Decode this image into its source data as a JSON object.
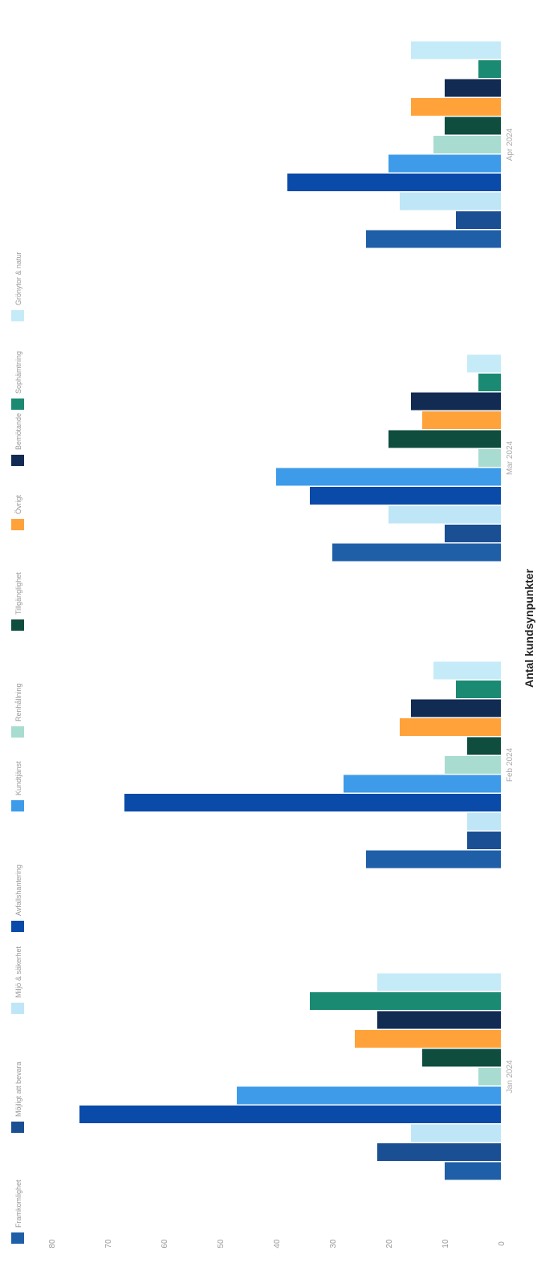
{
  "chart_data": {
    "type": "bar",
    "orientation": "horizontal",
    "rotated": "90deg counter-clockwise",
    "title": "Antal kundsynpunkter",
    "xlabel": "",
    "ylabel": "",
    "ylim": [
      0,
      80
    ],
    "yticks": [
      0,
      10,
      20,
      30,
      40,
      50,
      60,
      70,
      80
    ],
    "ytick_labels": [
      "0",
      "10",
      "20",
      "30",
      "40",
      "50",
      "60",
      "70",
      "80"
    ],
    "grid": false,
    "legend_position": "top",
    "categories": [
      "Jan 2024",
      "Feb 2024",
      "Mar 2024",
      "Apr 2024"
    ],
    "series": [
      {
        "name": "Framkomlighet",
        "color": "#1f5fa8",
        "values": [
          10,
          24,
          30,
          24
        ]
      },
      {
        "name": "Möjligt att bevara",
        "color": "#1a4f93",
        "values": [
          22,
          6,
          10,
          8
        ]
      },
      {
        "name": "Miljö & säkerhet",
        "color": "#bfe6f7",
        "values": [
          16,
          6,
          20,
          18
        ]
      },
      {
        "name": "Avfallshantering",
        "color": "#0a4aa8",
        "values": [
          75,
          67,
          34,
          38
        ]
      },
      {
        "name": "Kundtjänst",
        "color": "#3d9be9",
        "values": [
          47,
          28,
          40,
          20
        ]
      },
      {
        "name": "Renhållning",
        "color": "#a8dcd0",
        "values": [
          4,
          10,
          4,
          12
        ]
      },
      {
        "name": "Tillgänglighet",
        "color": "#0f4d3f",
        "values": [
          14,
          6,
          20,
          10
        ]
      },
      {
        "name": "Övrigt",
        "color": "#ffa23a",
        "values": [
          26,
          18,
          14,
          16
        ]
      },
      {
        "name": "Bemötande",
        "color": "#122b53",
        "values": [
          22,
          16,
          16,
          10
        ]
      },
      {
        "name": "Sophämtning",
        "color": "#1b8a72",
        "values": [
          34,
          8,
          4,
          4
        ]
      },
      {
        "name": "Grönytor & natur",
        "color": "#c6ebf8",
        "values": [
          22,
          12,
          6,
          16
        ]
      }
    ]
  }
}
